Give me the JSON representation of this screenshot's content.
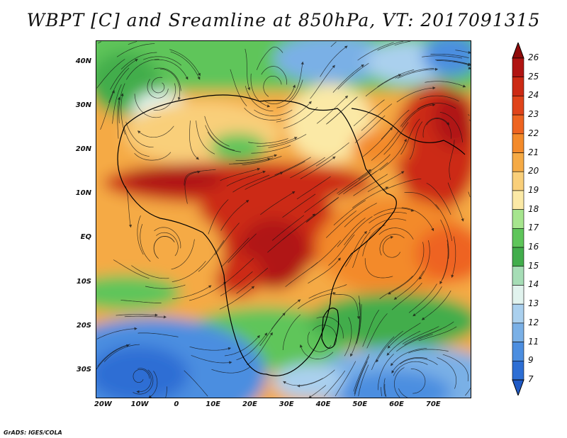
{
  "title": "WBPT [C] and Sreamline at 850hPa, VT: 2017091315",
  "credit": "GrADS: IGES/COLA",
  "map": {
    "lon_range": [
      -22,
      80
    ],
    "lat_range": [
      -36,
      45
    ],
    "lat_ticks": [
      {
        "value": 40,
        "label": "40N"
      },
      {
        "value": 30,
        "label": "30N"
      },
      {
        "value": 20,
        "label": "20N"
      },
      {
        "value": 10,
        "label": "10N"
      },
      {
        "value": 0,
        "label": "EQ"
      },
      {
        "value": -10,
        "label": "10S"
      },
      {
        "value": -20,
        "label": "20S"
      },
      {
        "value": -30,
        "label": "30S"
      }
    ],
    "lon_ticks": [
      {
        "value": -20,
        "label": "20W"
      },
      {
        "value": -10,
        "label": "10W"
      },
      {
        "value": 0,
        "label": "0"
      },
      {
        "value": 10,
        "label": "10E"
      },
      {
        "value": 20,
        "label": "20E"
      },
      {
        "value": 30,
        "label": "30E"
      },
      {
        "value": 40,
        "label": "40E"
      },
      {
        "value": 50,
        "label": "50E"
      },
      {
        "value": 60,
        "label": "60E"
      },
      {
        "value": 70,
        "label": "70E"
      }
    ]
  },
  "colorbar": {
    "labels": [
      "26",
      "25",
      "24",
      "23",
      "22",
      "21",
      "20",
      "19",
      "18",
      "17",
      "16",
      "15",
      "14",
      "13",
      "12",
      "11",
      "9",
      "7"
    ],
    "colors": [
      "#8f0a0a",
      "#b01412",
      "#cc2a14",
      "#e0441a",
      "#ee6420",
      "#f38a2a",
      "#f5aa45",
      "#f9cf7a",
      "#fbe9a6",
      "#a6e58e",
      "#5ec55a",
      "#42ad4c",
      "#a6ddb6",
      "#e1f3ee",
      "#aad0ee",
      "#7ab0e6",
      "#4c8ee0",
      "#2d6ed4",
      "#1f5ac6"
    ]
  }
}
